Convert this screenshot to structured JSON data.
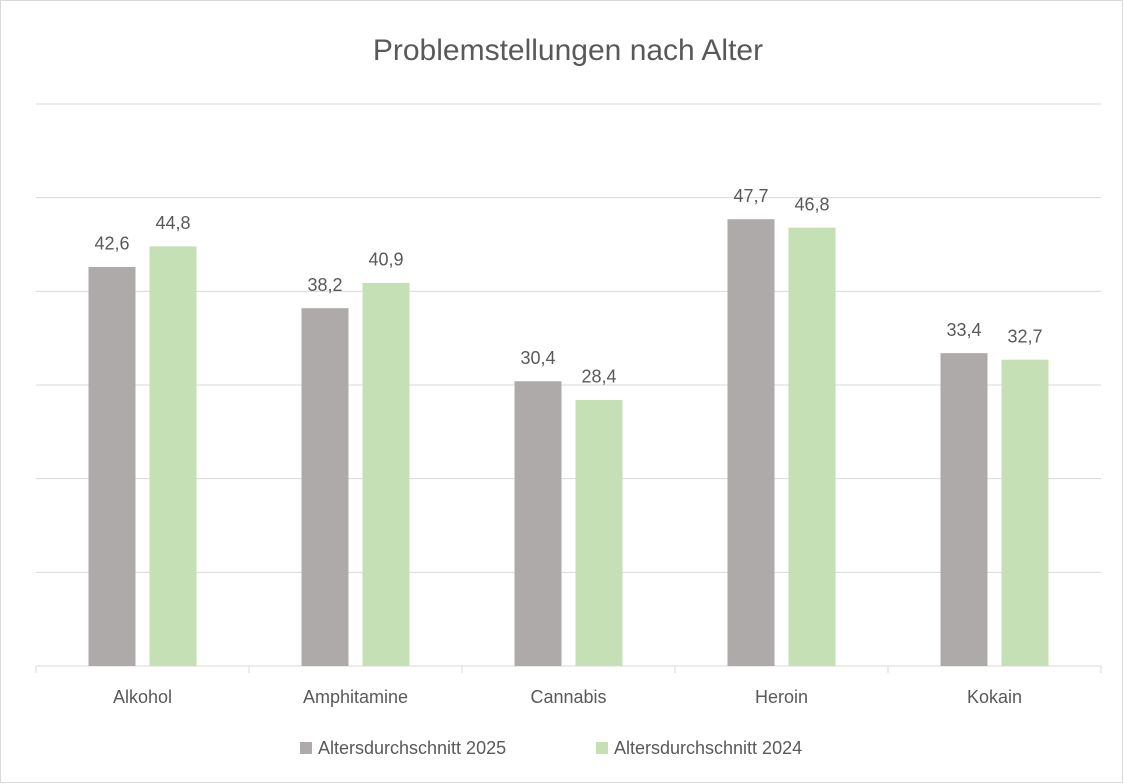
{
  "chart_data": {
    "type": "bar",
    "title": "Problemstellungen nach Alter",
    "categories": [
      "Alkohol",
      "Amphitamine",
      "Cannabis",
      "Heroin",
      "Kokain"
    ],
    "series": [
      {
        "name": "Altersdurchschnitt 2025",
        "color": "#aeaaaa",
        "values": [
          42.6,
          38.2,
          30.4,
          47.7,
          33.4
        ],
        "value_labels": [
          "42,6",
          "38,2",
          "30,4",
          "47,7",
          "33,4"
        ]
      },
      {
        "name": "Altersdurchschnitt 2024",
        "color": "#c5e0b4",
        "values": [
          44.8,
          40.9,
          28.4,
          46.8,
          32.7
        ],
        "value_labels": [
          "44,8",
          "40,9",
          "28,4",
          "46,8",
          "32,7"
        ]
      }
    ],
    "ylim": [
      0,
      60
    ],
    "yticks": [
      0,
      10,
      20,
      30,
      40,
      50,
      60
    ],
    "grid": true,
    "legend": "bottom"
  }
}
